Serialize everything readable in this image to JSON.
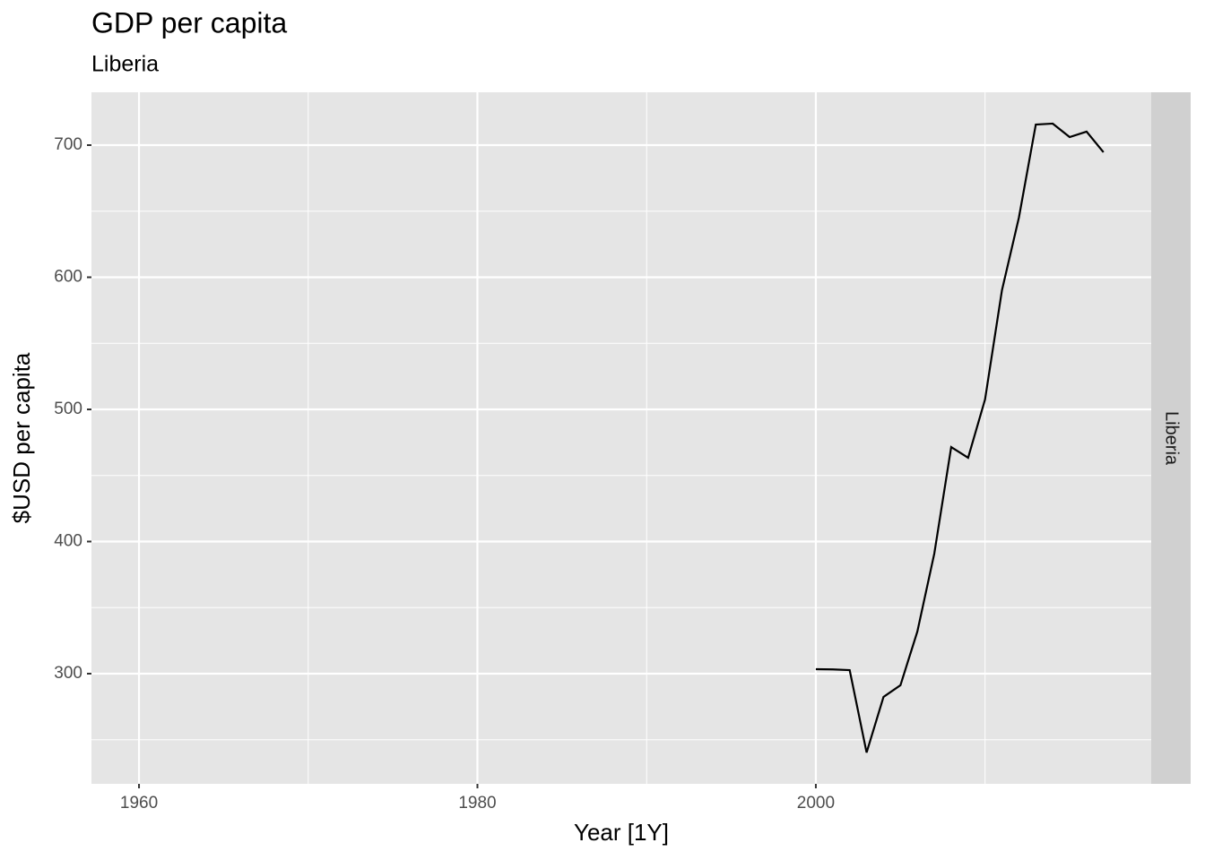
{
  "chart_data": {
    "type": "line",
    "title": "GDP per capita",
    "subtitle": "Liberia",
    "x_label": "Year [1Y]",
    "y_label": "$USD per capita",
    "facet_label": "Liberia",
    "x": [
      2000,
      2001,
      2002,
      2003,
      2004,
      2005,
      2006,
      2007,
      2008,
      2009,
      2010,
      2011,
      2012,
      2013,
      2014,
      2015,
      2016,
      2017
    ],
    "values": [
      303.4,
      303.2,
      302.7,
      240.3,
      282.4,
      291.2,
      331.9,
      390.8,
      471.5,
      463.4,
      507.5,
      590.2,
      645.1,
      715.6,
      716.3,
      706.1,
      710.2,
      694.6
    ],
    "color": "#000000",
    "xlim": [
      1957.19,
      2019.82
    ],
    "xticks": [
      1960,
      1980,
      2000
    ],
    "x_minor_breaks": [
      1970,
      1990,
      2010
    ],
    "ylim": [
      216.6,
      740
    ],
    "yticks": [
      300,
      400,
      500,
      600,
      700
    ],
    "y_minor_breaks": [
      250,
      350,
      450,
      550,
      650
    ],
    "grid": true
  }
}
